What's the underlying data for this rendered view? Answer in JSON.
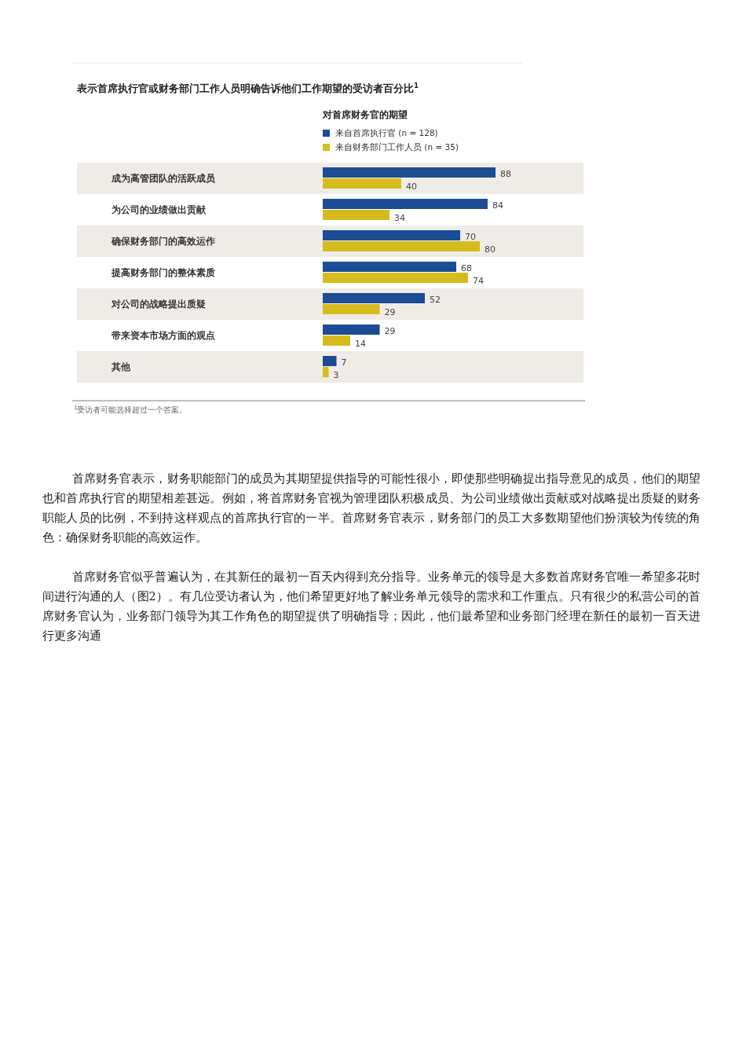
{
  "chart_data": {
    "type": "bar",
    "orientation": "horizontal",
    "data_labels": true,
    "legend": "top",
    "title": "表示首席执行官或财务部门工作人员明确告诉他们工作期望的受访者百分比$^{1}$",
    "legend_title": "对首席财务官的期望",
    "categories": [
      "成为高管团队的活跃成员",
      "为公司的业绩做出贡献",
      "确保财务部门的高效运作",
      "提高财务部门的整体素质",
      "对公司的战略提出质疑",
      "带来资本市场方面的观点",
      "其他"
    ],
    "series": [
      {
        "name": "来自首席执行官 (n = 128)",
        "color": "#1c4c94",
        "values": [
          88,
          84,
          70,
          68,
          52,
          29,
          7
        ]
      },
      {
        "name": "来自财务部门工作人员 (n = 35)",
        "color": "#d6bb1e",
        "values": [
          40,
          34,
          80,
          74,
          29,
          14,
          3
        ]
      }
    ],
    "annotations": [
      "$^{1}$受访者可能选择超过一个答案。",
      "首席财务官表示，财务职能部门的成员为其期望提供指导的可能性很小，即使那些明确提出指导意见的成员，他们的期望也和首席执行官的期望相差甚远。例如，将首席财务官视为管理团队积极成员、为公司业绩做出贡献或对战略提出质疑的财务职能人员的比例，不到持这样观点的首席执行官的一半。首席财务官表示，财务部门的员工大多数期望他们扮演较为传统的角色：确保财务职能的高效运作。",
      "首席财务官似乎普遍认为，在其新任的最初一百天内得到充分指导。业务单元的领导是大多数首席财务官唯一希望多花时间进行沟通的人（图2）。有几位受访者认为，他们希望更好地了解业务单元领导的需求和工作重点。只有很少的私营公司的首席财务官认为，业务部门领导为其工作角色的期望提供了明确指导；因此，他们最希望和业务部门经理在新任的最初一百天进行更多沟通"
    ]
  }
}
